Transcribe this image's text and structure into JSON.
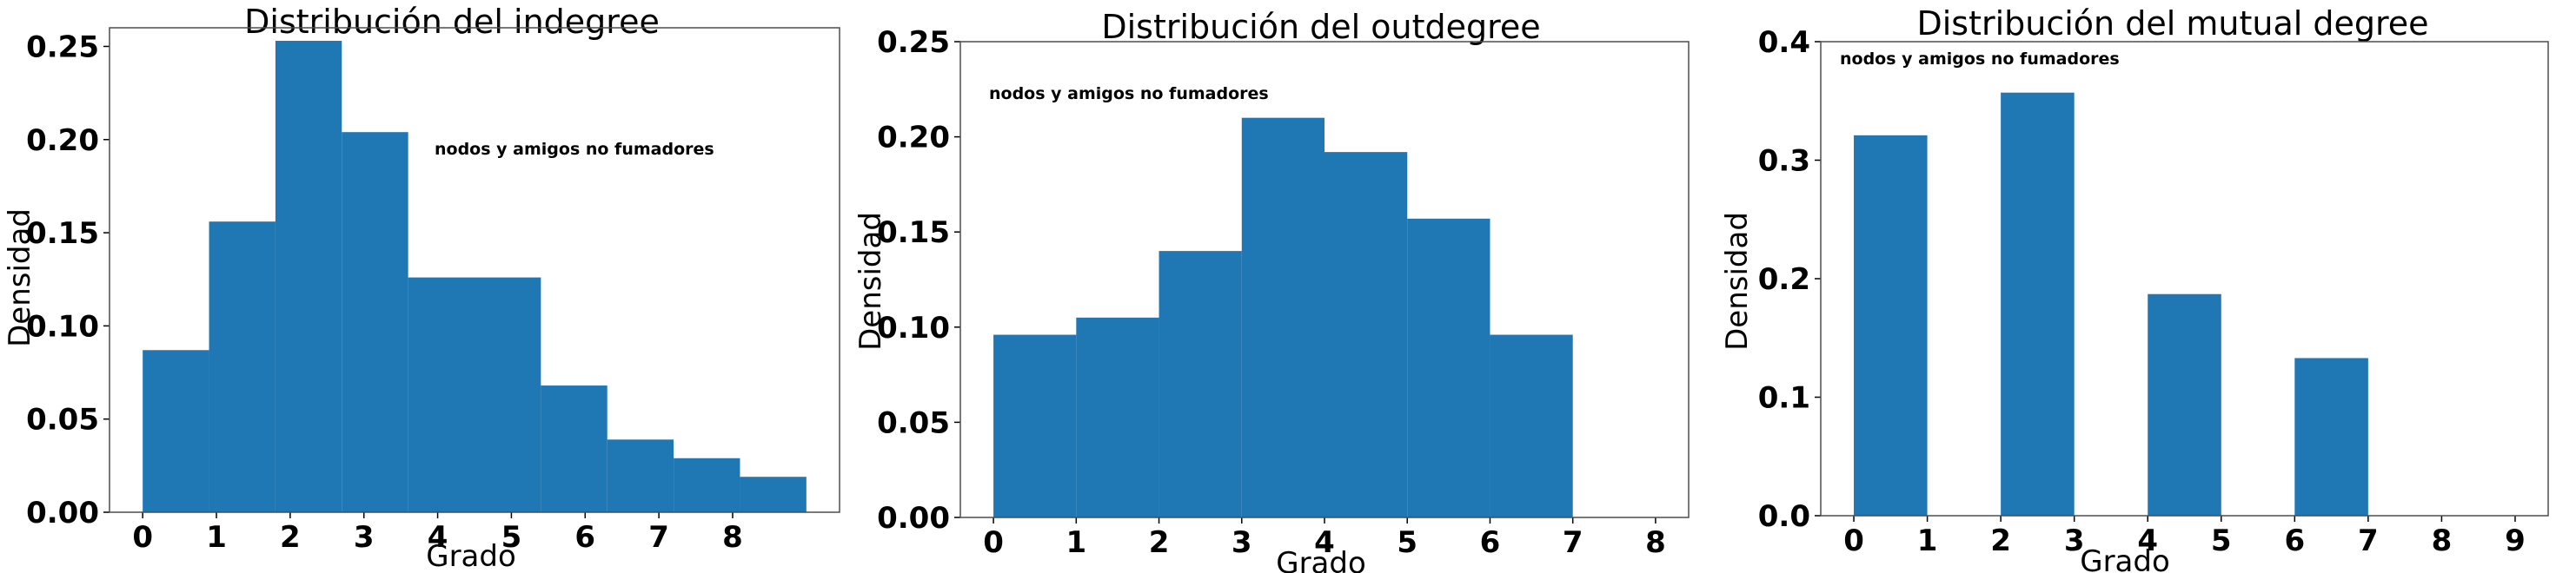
{
  "figure": {
    "bar_color": "#1f77b4",
    "background": "#ffffff"
  },
  "chart_data": [
    {
      "type": "bar",
      "title": "Distribución del indegree",
      "xlabel": "Grado",
      "ylabel": "Densidad",
      "annotation": "nodos y amigos no fumadores",
      "xlim": [
        -0.45,
        9.45
      ],
      "ylim": [
        0,
        0.26
      ],
      "x_ticks": [
        0,
        1,
        2,
        3,
        4,
        5,
        6,
        7,
        8
      ],
      "y_ticks": [
        "0.00",
        "0.05",
        "0.10",
        "0.15",
        "0.20",
        "0.25"
      ],
      "bin_edges": [
        0,
        0.9,
        1.8,
        2.7,
        3.6,
        4.5,
        5.4,
        6.3,
        7.2,
        8.1,
        9.0
      ],
      "values": [
        0.087,
        0.156,
        0.253,
        0.204,
        0.126,
        0.126,
        0.068,
        0.039,
        0.029,
        0.019
      ],
      "grid": false
    },
    {
      "type": "bar",
      "title": "Distribución del outdegree",
      "xlabel": "Grado",
      "ylabel": "Densidad",
      "annotation": "nodos y amigos no fumadores",
      "xlim": [
        -0.4,
        8.4
      ],
      "ylim": [
        0,
        0.25
      ],
      "x_ticks": [
        0,
        1,
        2,
        3,
        4,
        5,
        6,
        7,
        8
      ],
      "y_ticks": [
        "0.00",
        "0.05",
        "0.10",
        "0.15",
        "0.20",
        "0.25"
      ],
      "bin_edges": [
        0,
        1,
        2,
        3,
        4,
        5,
        6,
        7
      ],
      "values": [
        0.096,
        0.105,
        0.14,
        0.21,
        0.192,
        0.157,
        0.096
      ],
      "grid": false
    },
    {
      "type": "bar",
      "title": "Distribución del mutual degree",
      "xlabel": "Grado",
      "ylabel": "Densidad",
      "annotation": "nodos y amigos no fumadores",
      "xlim": [
        -0.45,
        9.45
      ],
      "ylim": [
        0,
        0.4
      ],
      "x_ticks": [
        0,
        1,
        2,
        3,
        4,
        5,
        6,
        7,
        8,
        9
      ],
      "y_ticks": [
        "0.0",
        "0.1",
        "0.2",
        "0.3",
        "0.4"
      ],
      "bin_edges": [
        0,
        1,
        2,
        3,
        4,
        5,
        6,
        7
      ],
      "values": [
        0.321,
        0,
        0.357,
        0,
        0.187,
        0,
        0.133
      ],
      "grid": false
    }
  ]
}
